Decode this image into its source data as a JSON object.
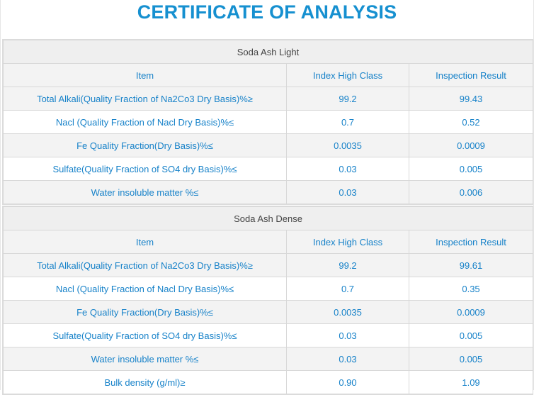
{
  "title": "CERTIFICATE OF ANALYSIS",
  "tables": [
    {
      "caption": "Soda Ash Light",
      "headers": [
        "Item",
        "Index High Class",
        "Inspection Result"
      ],
      "rows": [
        [
          "Total Alkali(Quality Fraction of Na2Co3 Dry Basis)%≥",
          "99.2",
          "99.43"
        ],
        [
          "Nacl (Quality Fraction of Nacl Dry Basis)%≤",
          "0.7",
          "0.52"
        ],
        [
          "Fe Quality Fraction(Dry Basis)%≤",
          "0.0035",
          "0.0009"
        ],
        [
          "Sulfate(Quality Fraction of SO4 dry Basis)%≤",
          "0.03",
          "0.005"
        ],
        [
          "Water insoluble matter %≤",
          "0.03",
          "0.006"
        ]
      ]
    },
    {
      "caption": "Soda Ash Dense",
      "headers": [
        "Item",
        "Index High Class",
        "Inspection Result"
      ],
      "rows": [
        [
          "Total Alkali(Quality Fraction of Na2Co3 Dry Basis)%≥",
          "99.2",
          "99.61"
        ],
        [
          "Nacl (Quality Fraction of Nacl Dry Basis)%≤",
          "0.7",
          "0.35"
        ],
        [
          "Fe Quality Fraction(Dry Basis)%≤",
          "0.0035",
          "0.0009"
        ],
        [
          "Sulfate(Quality Fraction of SO4 dry Basis)%≤",
          "0.03",
          "0.005"
        ],
        [
          "Water insoluble matter %≤",
          "0.03",
          "0.005"
        ],
        [
          "Bulk density (g/ml)≥",
          "0.90",
          "1.09"
        ]
      ]
    }
  ],
  "colors": {
    "title": "#1690d0",
    "cell_text": "#1782c9",
    "caption_text": "#444444",
    "stripe": "#f3f3f3",
    "border": "#d8d8d8"
  }
}
